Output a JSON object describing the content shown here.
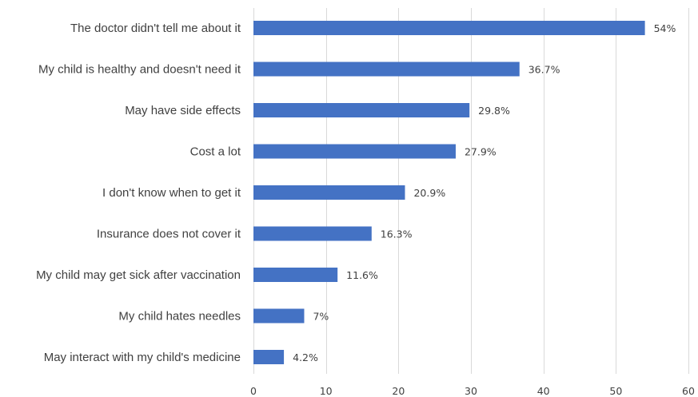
{
  "chart_data": {
    "type": "bar",
    "orientation": "horizontal",
    "categories": [
      "The doctor didn't tell me about it",
      "My child is healthy and doesn't need it",
      "May have side effects",
      "Cost a lot",
      "I don't know when to get it",
      "Insurance does not cover it",
      "My child may get sick after vaccination",
      "My child hates needles ",
      "May interact with my child's medicine"
    ],
    "values": [
      54,
      36.7,
      29.8,
      27.9,
      20.9,
      16.3,
      11.6,
      7,
      4.2
    ],
    "data_labels": [
      "54%",
      "36.7%",
      "29.8%",
      "27.9%",
      "20.9%",
      "16.3%",
      "11.6%",
      "7%",
      "4.2%"
    ],
    "xlim": [
      0,
      60
    ],
    "xticks": [
      0,
      10,
      20,
      30,
      40,
      50,
      60
    ],
    "title": "",
    "xlabel": "",
    "ylabel": "",
    "grid": "vertical",
    "legend": "none",
    "bar_color": "#4472c4"
  }
}
